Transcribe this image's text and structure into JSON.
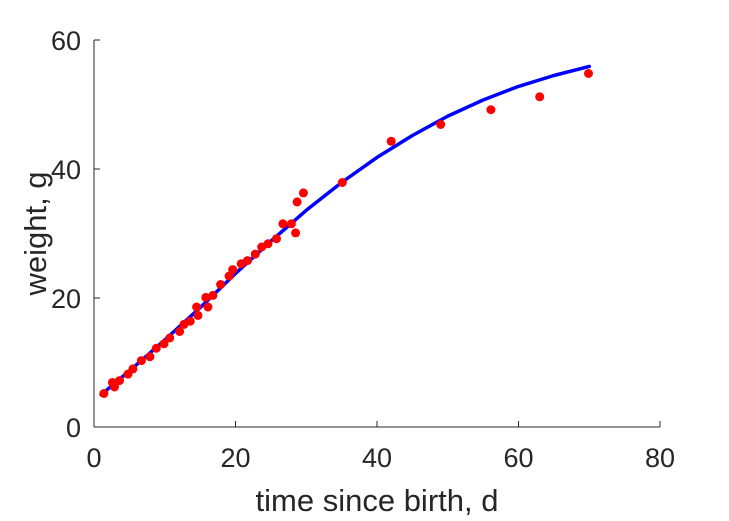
{
  "chart_data": {
    "type": "scatter",
    "xlabel": "time since birth, d",
    "ylabel": "weight, g",
    "xlim": [
      0,
      80
    ],
    "ylim": [
      0,
      60
    ],
    "xticks": [
      0,
      20,
      40,
      60,
      80
    ],
    "yticks": [
      0,
      20,
      40,
      60
    ],
    "xtick_labels": [
      "0",
      "20",
      "40",
      "60",
      "80"
    ],
    "ytick_labels": [
      "0",
      "20",
      "40",
      "60"
    ],
    "grid": false,
    "box": false,
    "series": [
      {
        "kind": "points",
        "color": "#ff0000",
        "x": [
          1.4,
          2.6,
          2.9,
          3.6,
          4.8,
          5.5,
          6.7,
          7.9,
          8.8,
          9.9,
          10.7,
          12.1,
          12.7,
          13.6,
          14.5,
          14.7,
          15.8,
          16.1,
          16.8,
          17.9,
          19.1,
          19.6,
          20.8,
          21.7,
          22.8,
          23.7,
          24.6,
          25.8,
          26.7,
          27.9,
          28.5,
          28.7,
          29.6,
          35.1,
          42.0,
          49.0,
          56.1,
          63.0,
          69.9
        ],
        "y": [
          5.2,
          6.9,
          6.2,
          7.2,
          8.2,
          9.0,
          10.3,
          10.9,
          12.2,
          12.9,
          13.8,
          14.8,
          15.9,
          16.4,
          18.6,
          17.3,
          20.1,
          18.6,
          20.4,
          22.1,
          23.4,
          24.4,
          25.3,
          25.8,
          26.8,
          27.9,
          28.4,
          29.2,
          31.5,
          31.5,
          30.1,
          34.9,
          36.3,
          37.9,
          44.3,
          46.9,
          49.2,
          51.2,
          54.8
        ]
      },
      {
        "kind": "fit-line",
        "color": "#0000ff",
        "x": [
          1,
          5,
          10,
          15,
          20,
          25,
          30,
          35,
          40,
          45,
          50,
          55,
          60,
          65,
          70
        ],
        "y": [
          5.0,
          8.7,
          13.5,
          18.5,
          23.8,
          28.8,
          33.6,
          37.9,
          41.8,
          45.2,
          48.2,
          50.7,
          52.8,
          54.5,
          55.9
        ]
      }
    ]
  }
}
